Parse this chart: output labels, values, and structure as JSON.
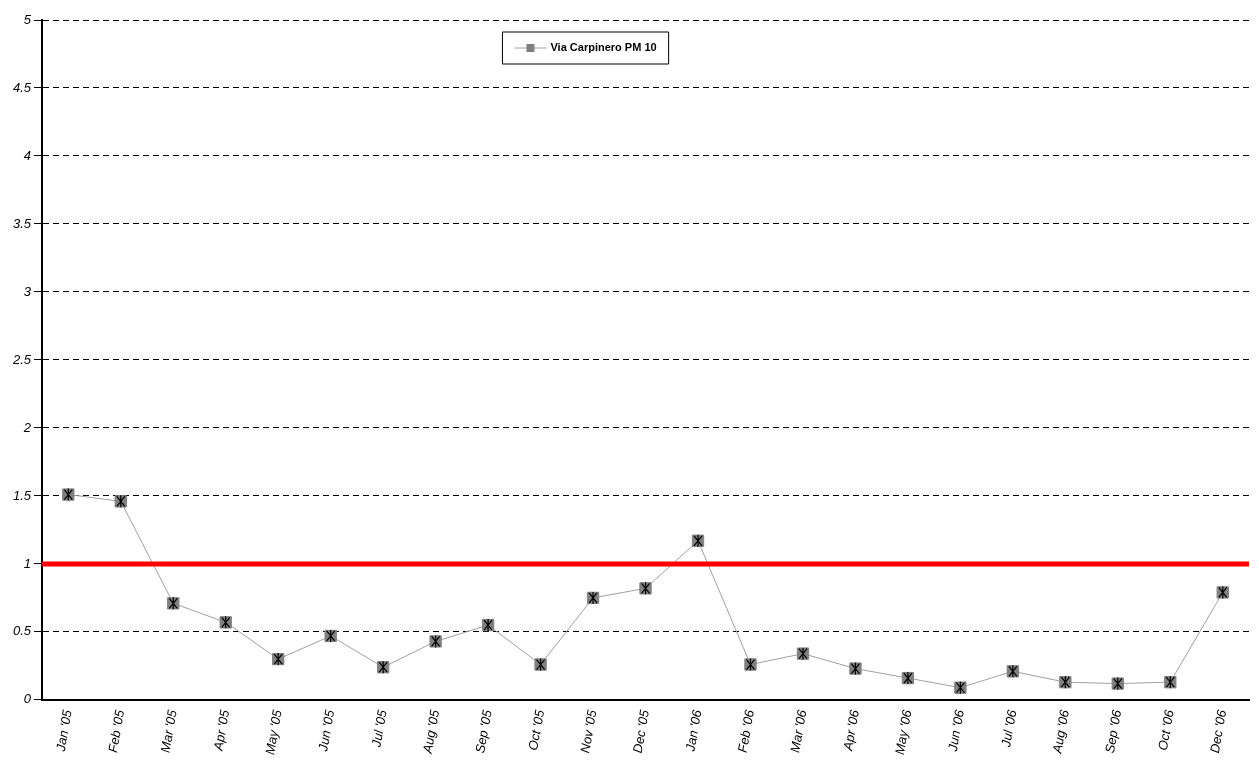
{
  "chart_data": {
    "type": "line",
    "categories": [
      "Jan '05",
      "Feb '05",
      "Mar '05",
      "Apr '05",
      "May '05",
      "Jun '05",
      "Jul '05",
      "Aug '05",
      "Sep '05",
      "Oct '05",
      "Nov '05",
      "Dec '05",
      "Jan '06",
      "Feb '06",
      "Mar '06",
      "Apr '06",
      "May '06",
      "Jun '06",
      "Jul '06",
      "Aug '06",
      "Sep '06",
      "Oct '06",
      "Dec '06"
    ],
    "series": [
      {
        "name": "Via Carpinero PM 10",
        "color": "#808080",
        "values": [
          1.51,
          1.46,
          0.71,
          0.57,
          0.3,
          0.47,
          0.24,
          0.43,
          0.55,
          0.26,
          0.75,
          0.82,
          1.17,
          0.26,
          0.34,
          0.23,
          0.16,
          0.09,
          0.21,
          0.13,
          0.12,
          0.13,
          0.79
        ]
      }
    ],
    "ylim": [
      0,
      5
    ],
    "yticks": [
      0,
      0.5,
      1,
      1.5,
      2,
      2.5,
      3,
      3.5,
      4,
      4.5,
      5
    ],
    "grid": "y",
    "legend": "top",
    "marker": "square",
    "line_style": "solid",
    "ref_lines": [
      {
        "axis": "y",
        "value": 1,
        "color": "#ff0000"
      }
    ]
  }
}
